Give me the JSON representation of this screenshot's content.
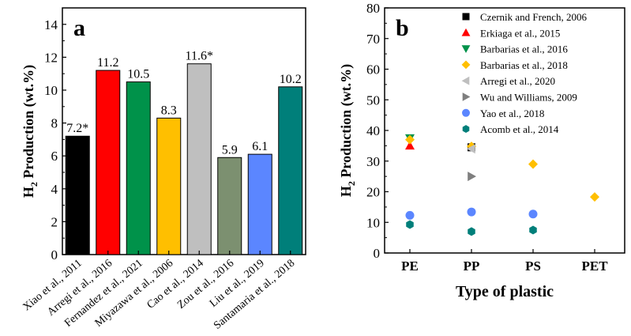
{
  "chart_data": [
    {
      "panel_label": "a",
      "type": "bar",
      "ylabel_main": "H",
      "ylabel_sub": "2",
      "ylabel_rest": " Production (wt.%)",
      "ylim": [
        0,
        15
      ],
      "yticks": [
        0,
        2,
        4,
        6,
        8,
        10,
        12,
        14
      ],
      "categories": [
        "Xiao et al., 2011",
        "Arregi et al., 2016",
        "Fernandez et al., 2021",
        "Miyazawa et al., 2006",
        "Cao et al., 2014",
        "Zou et al., 2016",
        "Liu et al., 2019",
        "Santamaria et al., 2018"
      ],
      "values": [
        7.2,
        11.2,
        10.5,
        8.3,
        11.6,
        5.9,
        6.1,
        10.2
      ],
      "value_labels": [
        "7.2*",
        "11.2",
        "10.5",
        "8.3",
        "11.6*",
        "5.9",
        "6.1",
        "10.2"
      ],
      "colors": [
        "#000000",
        "#ff0000",
        "#00924a",
        "#ffbf00",
        "#bfbfbf",
        "#7c9070",
        "#5b86ff",
        "#007f7a"
      ]
    },
    {
      "panel_label": "b",
      "type": "scatter",
      "ylabel_main": "H",
      "ylabel_sub": "2",
      "ylabel_rest": " Production (wt.%)",
      "xlabel": "Type of plastic",
      "ylim": [
        0,
        80
      ],
      "yticks": [
        0,
        10,
        20,
        30,
        40,
        50,
        60,
        70,
        80
      ],
      "categories": [
        "PE",
        "PP",
        "PS",
        "PET"
      ],
      "series": [
        {
          "name": "Czernik and French, 2006",
          "marker": "square",
          "color": "#000000",
          "points": [
            {
              "x": "PP",
              "y": 34.5
            }
          ]
        },
        {
          "name": "Erkiaga et al., 2015",
          "marker": "triangle-up",
          "color": "#ff0000",
          "points": [
            {
              "x": "PE",
              "y": 35
            }
          ]
        },
        {
          "name": "Barbarias et al., 2016",
          "marker": "triangle-down",
          "color": "#00924a",
          "points": [
            {
              "x": "PE",
              "y": 37.5
            }
          ]
        },
        {
          "name": "Barbarias et al., 2018",
          "marker": "diamond",
          "color": "#ffbf00",
          "points": [
            {
              "x": "PE",
              "y": 37
            },
            {
              "x": "PP",
              "y": 34.8
            },
            {
              "x": "PS",
              "y": 29
            },
            {
              "x": "PET",
              "y": 18.3
            }
          ]
        },
        {
          "name": "Arregi et al., 2020",
          "marker": "triangle-left",
          "color": "#bfbfbf",
          "points": [
            {
              "x": "PP",
              "y": 34
            }
          ]
        },
        {
          "name": "Wu and Williams, 2009",
          "marker": "triangle-right",
          "color": "#7f7f7f",
          "points": [
            {
              "x": "PP",
              "y": 25
            }
          ]
        },
        {
          "name": "Yao et al., 2018",
          "marker": "circle",
          "color": "#5b86ff",
          "points": [
            {
              "x": "PE",
              "y": 12.3
            },
            {
              "x": "PP",
              "y": 13.4
            },
            {
              "x": "PS",
              "y": 12.7
            }
          ]
        },
        {
          "name": "Acomb et al., 2014",
          "marker": "hexagon",
          "color": "#007f7a",
          "points": [
            {
              "x": "PE",
              "y": 9.3
            },
            {
              "x": "PP",
              "y": 7
            },
            {
              "x": "PS",
              "y": 7.5
            }
          ]
        }
      ]
    }
  ]
}
